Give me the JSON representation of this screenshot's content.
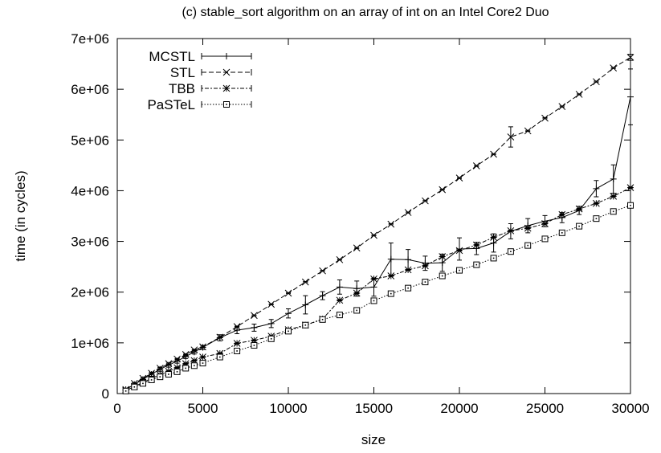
{
  "chart_data": {
    "type": "line",
    "title": "(c) stable_sort algorithm on an array of int on an Intel Core2 Duo",
    "xlabel": "size",
    "ylabel": "time (in cycles)",
    "xlim": [
      0,
      30000
    ],
    "ylim": [
      0,
      7000000
    ],
    "xticks": [
      0,
      5000,
      10000,
      15000,
      20000,
      25000,
      30000
    ],
    "xtick_labels": [
      "0",
      "5000",
      "10000",
      "15000",
      "20000",
      "25000",
      "30000"
    ],
    "yticks": [
      0,
      1000000,
      2000000,
      3000000,
      4000000,
      5000000,
      6000000,
      7000000
    ],
    "ytick_labels": [
      "0",
      "1e+06",
      "2e+06",
      "3e+06",
      "4e+06",
      "5e+06",
      "6e+06",
      "7e+06"
    ],
    "grid": false,
    "legend_position": "top-left",
    "x": [
      500,
      1000,
      1500,
      2000,
      2500,
      3000,
      3500,
      4000,
      4500,
      5000,
      6000,
      7000,
      8000,
      9000,
      10000,
      11000,
      12000,
      13000,
      14000,
      15000,
      16000,
      17000,
      18000,
      19000,
      20000,
      21000,
      22000,
      23000,
      24000,
      25000,
      26000,
      27000,
      28000,
      29000,
      30000
    ],
    "series": [
      {
        "name": "MCSTL",
        "style": "solid",
        "marker": "plus",
        "errorbars": true,
        "values": [
          80000,
          180000,
          280000,
          380000,
          480000,
          560000,
          640000,
          730000,
          820000,
          910000,
          1100000,
          1250000,
          1300000,
          1380000,
          1580000,
          1750000,
          1930000,
          2100000,
          2070000,
          2100000,
          2650000,
          2640000,
          2570000,
          2580000,
          2850000,
          2860000,
          2970000,
          3200000,
          3310000,
          3400000,
          3470000,
          3610000,
          4040000,
          4230000,
          5850000
        ],
        "errors": [
          20000,
          30000,
          30000,
          40000,
          40000,
          40000,
          40000,
          40000,
          40000,
          40000,
          60000,
          70000,
          70000,
          80000,
          90000,
          180000,
          80000,
          140000,
          150000,
          180000,
          320000,
          200000,
          140000,
          170000,
          220000,
          120000,
          180000,
          150000,
          140000,
          110000,
          100000,
          80000,
          160000,
          280000,
          550000
        ]
      },
      {
        "name": "STL",
        "style": "dashed",
        "marker": "cross",
        "errorbars": true,
        "values": [
          80000,
          200000,
          300000,
          400000,
          500000,
          590000,
          680000,
          770000,
          860000,
          920000,
          1110000,
          1320000,
          1540000,
          1760000,
          1980000,
          2200000,
          2420000,
          2640000,
          2870000,
          3120000,
          3340000,
          3570000,
          3800000,
          4020000,
          4250000,
          4490000,
          4720000,
          5060000,
          5180000,
          5430000,
          5660000,
          5900000,
          6150000,
          6420000,
          6630000
        ],
        "errors": [
          10000,
          10000,
          10000,
          10000,
          10000,
          10000,
          10000,
          10000,
          10000,
          10000,
          10000,
          10000,
          10000,
          10000,
          10000,
          10000,
          10000,
          10000,
          10000,
          10000,
          10000,
          10000,
          10000,
          10000,
          10000,
          10000,
          10000,
          200000,
          10000,
          10000,
          10000,
          10000,
          10000,
          10000,
          60000
        ]
      },
      {
        "name": "TBB",
        "style": "dotted-dashed",
        "marker": "star",
        "errorbars": true,
        "values": [
          60000,
          140000,
          220000,
          300000,
          370000,
          440000,
          510000,
          590000,
          650000,
          720000,
          790000,
          990000,
          1050000,
          1130000,
          1260000,
          1350000,
          1470000,
          1840000,
          1980000,
          2260000,
          2320000,
          2440000,
          2520000,
          2700000,
          2820000,
          2930000,
          3080000,
          3210000,
          3260000,
          3350000,
          3530000,
          3640000,
          3750000,
          3890000,
          4060000
        ],
        "errors": [
          10000,
          10000,
          10000,
          10000,
          10000,
          10000,
          10000,
          10000,
          10000,
          10000,
          10000,
          10000,
          10000,
          10000,
          10000,
          10000,
          10000,
          10000,
          10000,
          10000,
          10000,
          10000,
          10000,
          10000,
          10000,
          10000,
          10000,
          10000,
          10000,
          10000,
          10000,
          10000,
          10000,
          10000,
          10000
        ]
      },
      {
        "name": "PaSTeL",
        "style": "dotted",
        "marker": "square-dot",
        "errorbars": true,
        "values": [
          50000,
          130000,
          200000,
          270000,
          330000,
          380000,
          430000,
          500000,
          550000,
          600000,
          720000,
          840000,
          950000,
          1080000,
          1230000,
          1350000,
          1460000,
          1550000,
          1640000,
          1830000,
          1970000,
          2080000,
          2200000,
          2320000,
          2430000,
          2540000,
          2670000,
          2800000,
          2920000,
          3050000,
          3170000,
          3300000,
          3450000,
          3590000,
          3710000
        ],
        "errors": [
          10000,
          10000,
          10000,
          10000,
          10000,
          10000,
          10000,
          10000,
          10000,
          10000,
          10000,
          10000,
          10000,
          10000,
          10000,
          10000,
          10000,
          10000,
          10000,
          10000,
          10000,
          10000,
          10000,
          10000,
          10000,
          10000,
          10000,
          10000,
          10000,
          10000,
          10000,
          10000,
          10000,
          10000,
          10000
        ]
      }
    ]
  }
}
